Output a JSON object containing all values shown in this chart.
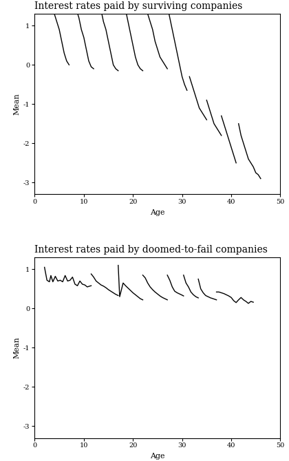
{
  "title1": "Interest rates paid by surviving companies",
  "title2": "Interest rates paid by doomed-to-fail companies",
  "xlabel": "Age",
  "ylabel": "Mean",
  "ylim": [
    -3.3,
    1.3
  ],
  "xlim": [
    0,
    50
  ],
  "yticks": [
    -3,
    -2,
    -1,
    0,
    1
  ],
  "ytick_labels": [
    "-3",
    "-2",
    "-1",
    "0",
    "1"
  ],
  "xticks": [
    0,
    10,
    20,
    30,
    40,
    50
  ],
  "line_color": "#000000",
  "line_width": 1.0,
  "bg_color": "#ffffff",
  "title_fontsize": 10,
  "axis_label_fontsize": 8,
  "tick_fontsize": 7,
  "surviving_segments": [
    {
      "x": [
        2.0,
        2.5,
        3.0,
        3.5,
        4.0,
        4.5,
        5.0,
        5.5,
        6.0,
        6.5,
        7.0
      ],
      "y": [
        2.2,
        2.0,
        1.7,
        1.5,
        1.3,
        1.1,
        0.9,
        0.6,
        0.3,
        0.1,
        0.0
      ]
    },
    {
      "x": [
        7.0,
        7.5,
        8.0,
        8.5,
        9.0,
        9.5,
        10.0,
        10.5,
        11.0,
        11.5,
        12.0
      ],
      "y": [
        2.1,
        1.9,
        1.7,
        1.4,
        1.2,
        0.9,
        0.7,
        0.4,
        0.1,
        -0.05,
        -0.1
      ]
    },
    {
      "x": [
        12.0,
        12.5,
        13.0,
        13.5,
        14.0,
        14.5,
        15.0,
        15.5,
        16.0,
        16.5,
        17.0
      ],
      "y": [
        2.1,
        1.9,
        1.7,
        1.4,
        1.1,
        0.9,
        0.6,
        0.3,
        0.0,
        -0.1,
        -0.15
      ]
    },
    {
      "x": [
        17.0,
        17.5,
        18.0,
        18.5,
        19.0,
        19.5,
        20.0,
        20.5,
        21.0,
        21.5,
        22.0
      ],
      "y": [
        2.1,
        1.9,
        1.6,
        1.4,
        1.1,
        0.8,
        0.5,
        0.2,
        0.0,
        -0.1,
        -0.15
      ]
    },
    {
      "x": [
        22.0,
        22.5,
        23.0,
        23.5,
        24.0,
        24.5,
        25.0,
        25.5,
        26.0,
        26.5,
        27.0
      ],
      "y": [
        1.7,
        1.5,
        1.3,
        1.1,
        0.9,
        0.6,
        0.4,
        0.2,
        0.1,
        0.0,
        -0.1
      ]
    },
    {
      "x": [
        27.0,
        27.5,
        28.0,
        28.5,
        29.0,
        29.5,
        30.0,
        30.5,
        31.0
      ],
      "y": [
        1.5,
        1.2,
        0.9,
        0.6,
        0.3,
        0.0,
        -0.3,
        -0.5,
        -0.65
      ]
    },
    {
      "x": [
        31.5,
        32.0,
        32.5,
        33.0,
        33.5,
        34.0,
        34.5,
        35.0
      ],
      "y": [
        -0.3,
        -0.5,
        -0.7,
        -0.9,
        -1.1,
        -1.2,
        -1.3,
        -1.4
      ]
    },
    {
      "x": [
        35.0,
        35.5,
        36.0,
        36.5,
        37.0,
        37.5,
        38.0
      ],
      "y": [
        -0.9,
        -1.1,
        -1.3,
        -1.5,
        -1.6,
        -1.7,
        -1.8
      ]
    },
    {
      "x": [
        38.0,
        38.5,
        39.0,
        39.5,
        40.0,
        40.5,
        41.0
      ],
      "y": [
        -1.3,
        -1.5,
        -1.7,
        -1.9,
        -2.1,
        -2.3,
        -2.5
      ]
    },
    {
      "x": [
        41.5,
        42.0,
        42.5,
        43.0,
        43.5,
        44.0,
        44.5,
        45.0,
        45.5,
        46.0
      ],
      "y": [
        -1.5,
        -1.8,
        -2.0,
        -2.2,
        -2.4,
        -2.5,
        -2.6,
        -2.75,
        -2.8,
        -2.9
      ]
    }
  ],
  "doomed_segments": [
    {
      "x": [
        2.0,
        2.5,
        3.0,
        3.3,
        3.7,
        4.2,
        4.7,
        5.2,
        5.7,
        6.2,
        6.7,
        7.2,
        7.7,
        8.2,
        8.7,
        9.2,
        9.7,
        10.2,
        10.7,
        11.2,
        11.5
      ],
      "y": [
        1.05,
        0.72,
        0.68,
        0.84,
        0.68,
        0.82,
        0.7,
        0.72,
        0.68,
        0.84,
        0.7,
        0.72,
        0.8,
        0.62,
        0.58,
        0.7,
        0.62,
        0.6,
        0.55,
        0.57,
        0.58
      ]
    },
    {
      "x": [
        11.5,
        12.0,
        12.5,
        13.0,
        13.5,
        14.0,
        14.5,
        15.0,
        15.5,
        16.0,
        16.5,
        17.0
      ],
      "y": [
        0.88,
        0.8,
        0.7,
        0.65,
        0.6,
        0.57,
        0.53,
        0.48,
        0.44,
        0.4,
        0.36,
        0.33
      ]
    },
    {
      "x": [
        17.0,
        17.3,
        18.0,
        18.5,
        19.0,
        19.5,
        20.0,
        20.5,
        21.0,
        21.5,
        22.0
      ],
      "y": [
        1.1,
        0.3,
        0.65,
        0.58,
        0.52,
        0.46,
        0.4,
        0.35,
        0.3,
        0.25,
        0.22
      ]
    },
    {
      "x": [
        22.0,
        22.5,
        23.0,
        23.5,
        24.0,
        24.5,
        25.0,
        25.5,
        26.0,
        26.5,
        27.0
      ],
      "y": [
        0.85,
        0.78,
        0.65,
        0.55,
        0.48,
        0.42,
        0.37,
        0.32,
        0.28,
        0.25,
        0.22
      ]
    },
    {
      "x": [
        27.0,
        27.5,
        28.0,
        28.5,
        29.0,
        29.5,
        30.0,
        30.3
      ],
      "y": [
        0.85,
        0.72,
        0.55,
        0.44,
        0.4,
        0.37,
        0.34,
        0.32
      ]
    },
    {
      "x": [
        30.3,
        30.8,
        31.3,
        31.8,
        32.3,
        32.8,
        33.3
      ],
      "y": [
        0.85,
        0.65,
        0.55,
        0.42,
        0.35,
        0.3,
        0.27
      ]
    },
    {
      "x": [
        33.3,
        33.8,
        34.3,
        34.8,
        35.3,
        35.8,
        36.3,
        37.0
      ],
      "y": [
        0.75,
        0.5,
        0.4,
        0.33,
        0.3,
        0.27,
        0.25,
        0.22
      ]
    },
    {
      "x": [
        37.0,
        37.5,
        38.0,
        38.5,
        39.0,
        39.5,
        40.0,
        40.5,
        41.0,
        41.5,
        42.0,
        42.5,
        43.0,
        43.5,
        44.0,
        44.5
      ],
      "y": [
        0.42,
        0.42,
        0.4,
        0.38,
        0.35,
        0.32,
        0.28,
        0.2,
        0.15,
        0.22,
        0.28,
        0.22,
        0.18,
        0.13,
        0.18,
        0.16
      ]
    }
  ]
}
